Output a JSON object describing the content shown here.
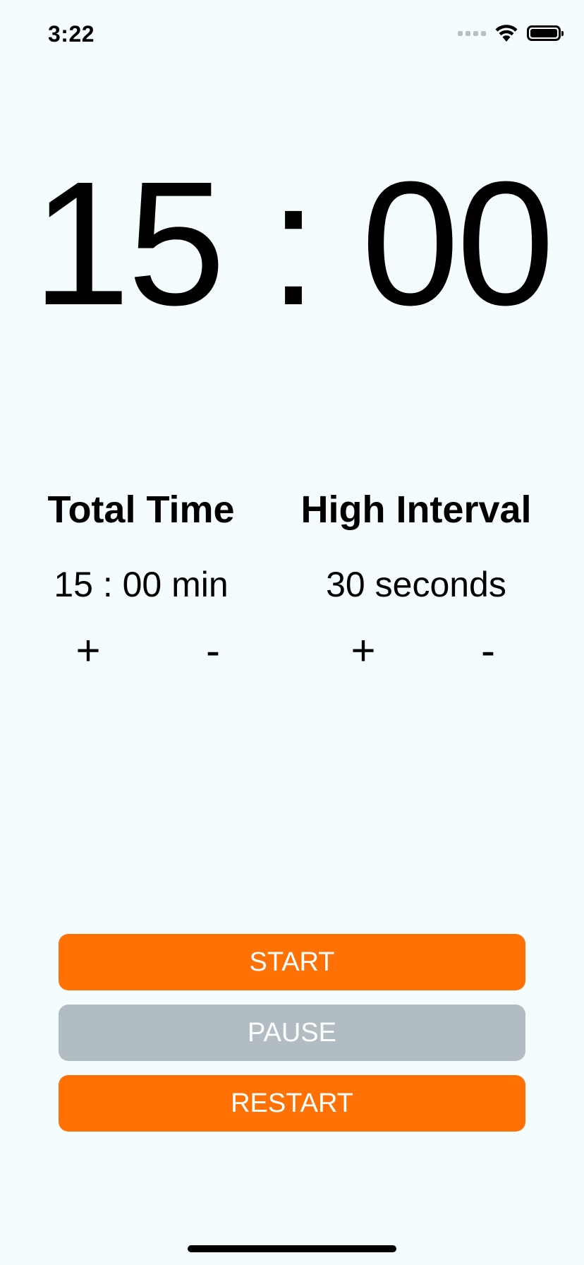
{
  "status_bar": {
    "time": "3:22"
  },
  "timer": {
    "display": "15 : 00"
  },
  "total_time": {
    "title": "Total Time",
    "value": "15 : 00 min",
    "plus_label": "+",
    "minus_label": "-"
  },
  "high_interval": {
    "title": "High Interval",
    "value": "30 seconds",
    "plus_label": "+",
    "minus_label": "-"
  },
  "buttons": {
    "start": "START",
    "pause": "PAUSE",
    "restart": "RESTART"
  },
  "colors": {
    "background": "#f4fcfe",
    "accent_orange": "#ff7005",
    "disabled_gray": "#b1bdc2"
  }
}
